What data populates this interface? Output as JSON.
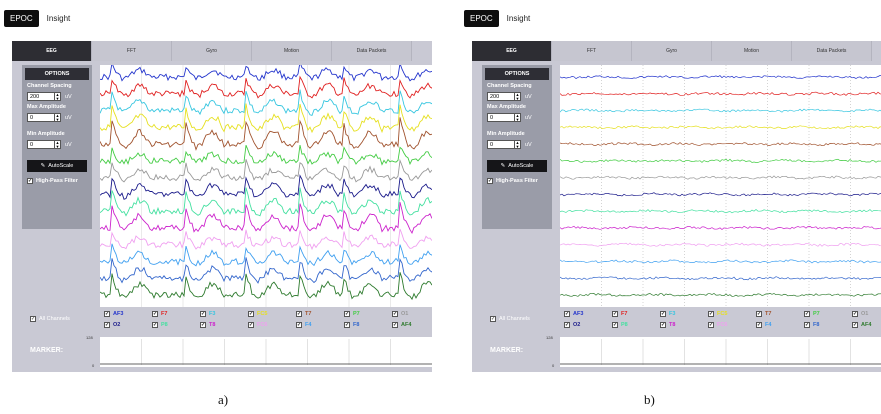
{
  "panels": [
    {
      "id": "a",
      "app": {
        "product": "EPOC",
        "title": "Insight"
      },
      "tabs": [
        "EEG",
        "FFT",
        "Gyro",
        "Motion",
        "Data Packets"
      ],
      "options": {
        "title": "OPTIONS",
        "channel_spacing_label": "Channel Spacing",
        "channel_spacing_value": "200",
        "max_amplitude_label": "Max Amplitude",
        "max_amplitude_value": "0",
        "min_amplitude_label": "Min Amplitude",
        "min_amplitude_value": "0",
        "unit": "uV",
        "autoscale_label": "AutoScale",
        "highpass_label": "High-Pass Filter"
      },
      "all_channels_label": "All Channels",
      "marker_label": "MARKER:",
      "marker_axis": {
        "max": "128",
        "min": "0"
      },
      "caption": "a)"
    },
    {
      "id": "b",
      "app": {
        "product": "EPOC",
        "title": "Insight"
      },
      "tabs": [
        "EEG",
        "FFT",
        "Gyro",
        "Motion",
        "Data Packets"
      ],
      "options": {
        "title": "OPTIONS",
        "channel_spacing_label": "Channel Spacing",
        "channel_spacing_value": "200",
        "max_amplitude_label": "Max Amplitude",
        "max_amplitude_value": "0",
        "min_amplitude_label": "Min Amplitude",
        "min_amplitude_value": "0",
        "unit": "uV",
        "autoscale_label": "AutoScale",
        "highpass_label": "High-Pass Filter"
      },
      "all_channels_label": "All Channels",
      "marker_label": "MARKER:",
      "marker_axis": {
        "max": "128",
        "min": "0"
      },
      "caption": "b)"
    }
  ],
  "channels_row1": [
    {
      "name": "AF3",
      "color": "#2233cc"
    },
    {
      "name": "F7",
      "color": "#e02020"
    },
    {
      "name": "F3",
      "color": "#37c6e0"
    },
    {
      "name": "FC5",
      "color": "#e6e020"
    },
    {
      "name": "T7",
      "color": "#a0522d"
    },
    {
      "name": "P7",
      "color": "#44cc44"
    },
    {
      "name": "O1",
      "color": "#999999"
    }
  ],
  "channels_row2": [
    {
      "name": "O2",
      "color": "#1a1a8a"
    },
    {
      "name": "P8",
      "color": "#44e0a0"
    },
    {
      "name": "T8",
      "color": "#cc22cc"
    },
    {
      "name": "FC6",
      "color": "#f0a0f0"
    },
    {
      "name": "F4",
      "color": "#40a0f0"
    },
    {
      "name": "F8",
      "color": "#3366cc"
    },
    {
      "name": "AF4",
      "color": "#2d7a2d"
    }
  ],
  "trace_colors": [
    "#2233cc",
    "#e02020",
    "#37c6e0",
    "#e6e020",
    "#a0522d",
    "#44cc44",
    "#999999",
    "#1a1a8a",
    "#44e0a0",
    "#cc22cc",
    "#f0a0f0",
    "#40a0f0",
    "#3366cc",
    "#2d7a2d"
  ]
}
